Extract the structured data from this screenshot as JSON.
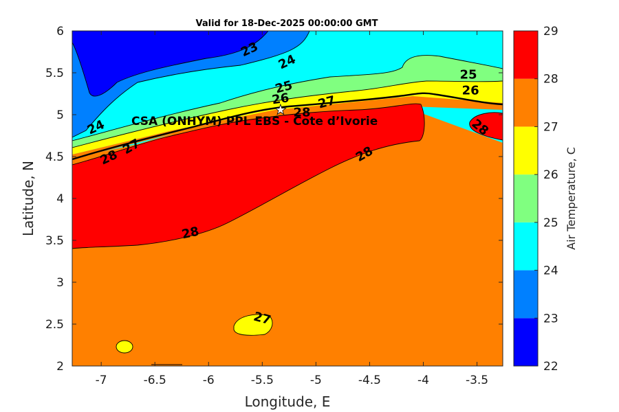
{
  "title": "Valid for 18-Dec-2025 00:00:00 GMT",
  "site_label": "CSA (ONHYM) PPL EBS  - Cote d’Ivorie",
  "site_marker": {
    "lon": -5.33,
    "lat": 5.06,
    "icon": "star-icon"
  },
  "axes": {
    "xlabel": "Longitude, E",
    "ylabel": "Latitude, N",
    "xlim": [
      -7.27,
      -3.26
    ],
    "ylim": [
      2,
      6
    ],
    "xticks": [
      "-7",
      "-6.5",
      "-6",
      "-5.5",
      "-5",
      "-4.5",
      "-4",
      "-3.5"
    ],
    "xtick_values": [
      -7,
      -6.5,
      -6,
      -5.5,
      -5,
      -4.5,
      -4,
      -3.5
    ],
    "yticks": [
      "6",
      "5.5",
      "5",
      "4.5",
      "4",
      "3.5",
      "3",
      "2.5",
      "2"
    ],
    "ytick_values": [
      6,
      5.5,
      5,
      4.5,
      4,
      3.5,
      3,
      2.5,
      2
    ]
  },
  "colorbar": {
    "label": "Air Temperature, C",
    "levels": [
      22,
      23,
      24,
      25,
      26,
      27,
      28,
      29
    ],
    "level_labels": [
      "22",
      "23",
      "24",
      "25",
      "26",
      "27",
      "28",
      "29"
    ],
    "colors": [
      "#0000ff",
      "#0080ff",
      "#00ffff",
      "#80ff80",
      "#ffff00",
      "#ff8000",
      "#ff0000",
      "#800000"
    ]
  },
  "chart_data": {
    "type": "heatmap",
    "subtype": "filled contour map",
    "variable": "Air Temperature, C",
    "x": "Longitude, E",
    "y": "Latitude, N",
    "contour_labels": [
      {
        "text": "23",
        "lon": -5.62,
        "lat": 5.78,
        "angle": -25
      },
      {
        "text": "24",
        "lon": -5.27,
        "lat": 5.63,
        "angle": -25
      },
      {
        "text": "25",
        "lon": -5.3,
        "lat": 5.33,
        "angle": -15
      },
      {
        "text": "26",
        "lon": -5.33,
        "lat": 5.19,
        "angle": -8
      },
      {
        "text": "27",
        "lon": -4.9,
        "lat": 5.15,
        "angle": -15
      },
      {
        "text": "28",
        "lon": -5.13,
        "lat": 5.03,
        "angle": 0
      },
      {
        "text": "25",
        "lon": -3.58,
        "lat": 5.48,
        "angle": 0
      },
      {
        "text": "26",
        "lon": -3.56,
        "lat": 5.29,
        "angle": 0
      },
      {
        "text": "24",
        "lon": -7.05,
        "lat": 4.85,
        "angle": -25
      },
      {
        "text": "27",
        "lon": -6.72,
        "lat": 4.62,
        "angle": -30
      },
      {
        "text": "28",
        "lon": -6.93,
        "lat": 4.49,
        "angle": -25
      },
      {
        "text": "28",
        "lon": -4.55,
        "lat": 4.53,
        "angle": -30
      },
      {
        "text": "28",
        "lon": -3.47,
        "lat": 4.85,
        "angle": 40
      },
      {
        "text": "28",
        "lon": -6.17,
        "lat": 3.59,
        "angle": -12
      },
      {
        "text": "27",
        "lon": -5.5,
        "lat": 2.57,
        "angle": 15
      }
    ]
  }
}
